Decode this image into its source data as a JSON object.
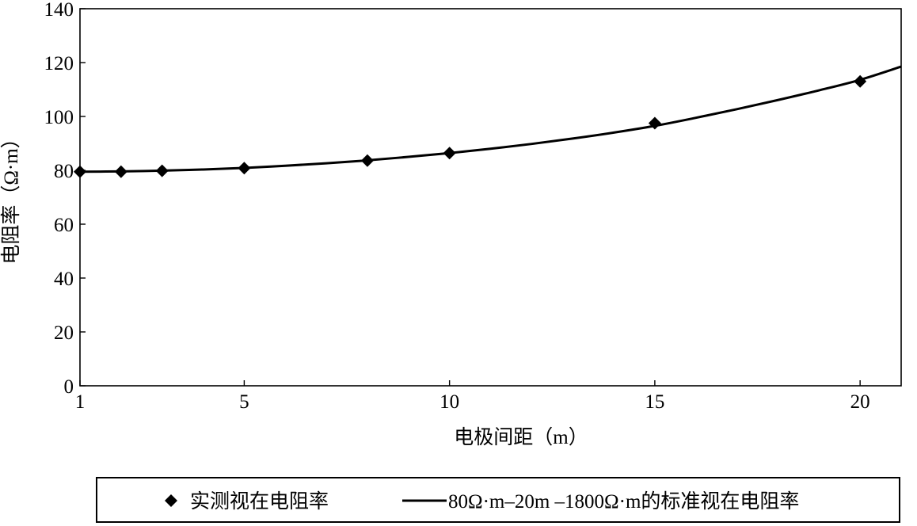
{
  "chart_data": {
    "type": "line",
    "xlabel": "电极间距（m）",
    "ylabel": "电阻率（Ω·m）",
    "xlim": [
      1,
      21
    ],
    "ylim": [
      0,
      140
    ],
    "x_ticks": [
      1,
      5,
      10,
      15,
      20
    ],
    "y_ticks": [
      0,
      20,
      40,
      60,
      80,
      100,
      120,
      140
    ],
    "grid": false,
    "legend_position": "bottom",
    "series": [
      {
        "name": "实测视在电阻率",
        "style": "markers",
        "marker": "diamond",
        "color": "#000000",
        "x": [
          1,
          2,
          3,
          5,
          8,
          10,
          15,
          20
        ],
        "y": [
          79.5,
          79.5,
          79.8,
          80.8,
          83.6,
          86.4,
          97.5,
          113
        ]
      },
      {
        "name": "80Ω·m–20m –1800Ω·m的标准视在电阻率",
        "style": "line",
        "color": "#000000",
        "x": [
          1,
          2,
          3,
          4,
          5,
          6,
          7,
          8,
          9,
          10,
          11,
          12,
          13,
          14,
          15,
          16,
          17,
          18,
          19,
          20,
          21
        ],
        "y": [
          79.5,
          79.6,
          79.9,
          80.3,
          80.9,
          81.7,
          82.6,
          83.7,
          85.0,
          86.4,
          88.0,
          89.8,
          91.8,
          94.0,
          96.5,
          99.5,
          102.7,
          106.1,
          109.7,
          113.6,
          118.5
        ]
      }
    ]
  }
}
